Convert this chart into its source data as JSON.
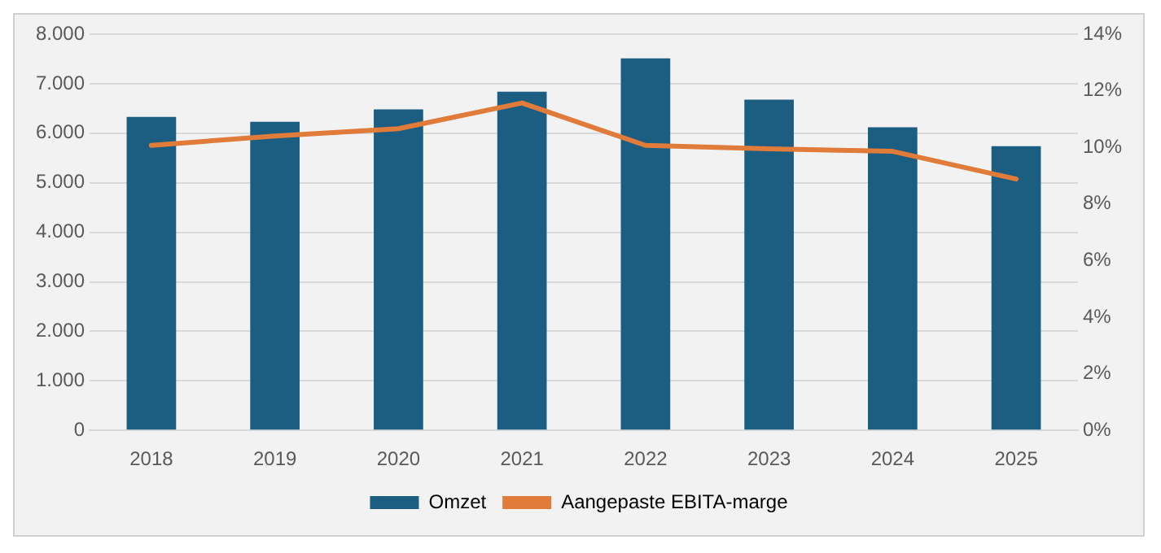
{
  "chart_data": {
    "type": "bar",
    "categories": [
      "2018",
      "2019",
      "2020",
      "2021",
      "2022",
      "2023",
      "2024",
      "2025"
    ],
    "series": [
      {
        "name": "Omzet",
        "color": "#1b5e82",
        "values": [
          6330,
          6230,
          6480,
          6840,
          7510,
          6680,
          6120,
          5740
        ]
      },
      {
        "name": "Aangepaste EBITA-marge",
        "type": "line",
        "axis": "y2",
        "color": "#e07b39",
        "values": [
          10.07,
          10.4,
          10.66,
          11.57,
          10.07,
          9.95,
          9.86,
          8.88
        ]
      }
    ],
    "ylim": [
      0,
      8000
    ],
    "yticks": [
      {
        "value": 0,
        "label": "0"
      },
      {
        "value": 1000,
        "label": "1.000"
      },
      {
        "value": 2000,
        "label": "2.000"
      },
      {
        "value": 3000,
        "label": "3.000"
      },
      {
        "value": 4000,
        "label": "4.000"
      },
      {
        "value": 5000,
        "label": "5.000"
      },
      {
        "value": 6000,
        "label": "6.000"
      },
      {
        "value": 7000,
        "label": "7.000"
      },
      {
        "value": 8000,
        "label": "8.000"
      }
    ],
    "y2lim": [
      0,
      14
    ],
    "y2ticks": [
      {
        "value": 0,
        "label": "0%"
      },
      {
        "value": 2,
        "label": "2%"
      },
      {
        "value": 4,
        "label": "4%"
      },
      {
        "value": 6,
        "label": "6%"
      },
      {
        "value": 8,
        "label": "8%"
      },
      {
        "value": 10,
        "label": "10%"
      },
      {
        "value": 12,
        "label": "12%"
      },
      {
        "value": 14,
        "label": "14%"
      }
    ],
    "grid": "y",
    "legend": "bottom",
    "marker": "none",
    "line_style": "solid"
  }
}
